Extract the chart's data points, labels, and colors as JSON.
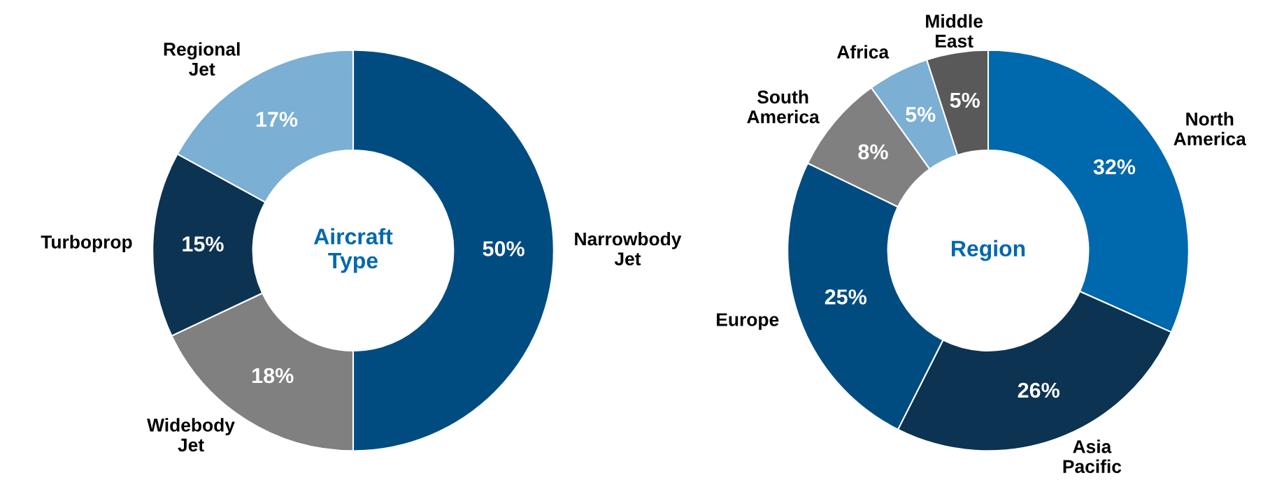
{
  "chart_data": [
    {
      "type": "donut",
      "title": "Aircraft\nType",
      "categories": [
        "Narrowbody\nJet",
        "Widebody\nJet",
        "Turboprop",
        "Regional\nJet"
      ],
      "values": [
        50,
        18,
        15,
        17
      ],
      "value_labels": [
        "50%",
        "18%",
        "15%",
        "17%"
      ],
      "colors": [
        "#004c80",
        "#808080",
        "#0d3352",
        "#7bafd4"
      ]
    },
    {
      "type": "donut",
      "title": "Region",
      "categories": [
        "North\nAmerica",
        "Asia\nPacific",
        "Europe",
        "South\nAmerica",
        "Africa",
        "Middle\nEast"
      ],
      "values": [
        32,
        26,
        25,
        8,
        5,
        5
      ],
      "value_labels": [
        "32%",
        "26%",
        "25%",
        "8%",
        "5%",
        "5%"
      ],
      "colors": [
        "#0068ad",
        "#0d3352",
        "#004c80",
        "#808080",
        "#7bafd4",
        "#595959"
      ]
    }
  ]
}
